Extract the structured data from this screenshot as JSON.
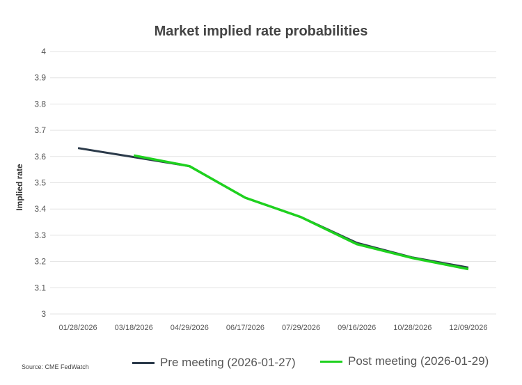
{
  "chart_data": {
    "type": "line",
    "title": "Market implied rate probabilities",
    "ylabel": "Implied rate",
    "xlabel": "",
    "ylim": [
      3,
      4
    ],
    "yticks": [
      "3",
      "3.1",
      "3.2",
      "3.3",
      "3.4",
      "3.5",
      "3.6",
      "3.7",
      "3.8",
      "3.9",
      "4"
    ],
    "categories": [
      "01/28/2026",
      "03/18/2026",
      "04/29/2026",
      "06/17/2026",
      "07/29/2026",
      "09/16/2026",
      "10/28/2026",
      "12/09/2026"
    ],
    "grid": true,
    "legend": "bottom",
    "series": [
      {
        "name": "Pre meeting (2026-01-27)",
        "color": "#2b3a4a",
        "values": [
          3.632,
          3.598,
          3.563,
          3.443,
          3.369,
          3.271,
          3.215,
          3.177
        ]
      },
      {
        "name": "Post meeting (2026-01-29)",
        "color": "#1ed11e",
        "values": [
          null,
          3.604,
          3.563,
          3.443,
          3.369,
          3.266,
          3.213,
          3.171
        ]
      }
    ]
  },
  "source": "Source: CME FedWatch"
}
